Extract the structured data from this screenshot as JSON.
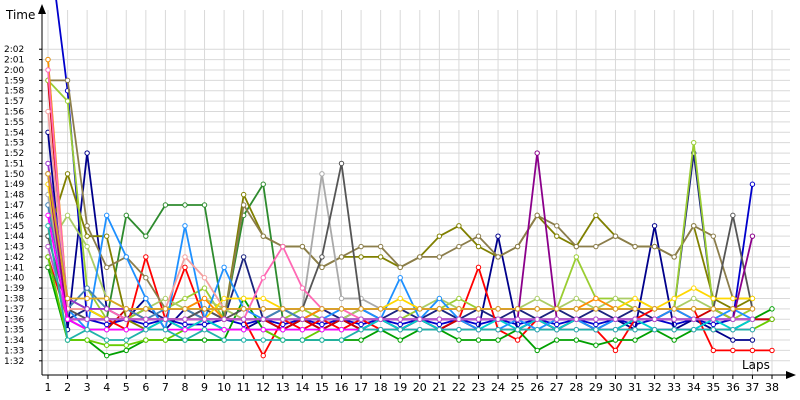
{
  "chart_data": {
    "type": "line",
    "xlabel": "Laps",
    "ylabel": "Time",
    "x_ticks": [
      "1",
      "2",
      "3",
      "4",
      "5",
      "6",
      "7",
      "8",
      "9",
      "10",
      "11",
      "12",
      "13",
      "14",
      "15",
      "16",
      "17",
      "18",
      "19",
      "20",
      "21",
      "22",
      "23",
      "24",
      "25",
      "26",
      "27",
      "28",
      "29",
      "30",
      "31",
      "32",
      "33",
      "34",
      "35",
      "36",
      "37",
      "38"
    ],
    "y_ticks": [
      "1:32",
      "1:33",
      "1:34",
      "1:35",
      "1:36",
      "1:37",
      "1:38",
      "1:39",
      "1:40",
      "1:41",
      "1:42",
      "1:43",
      "1:44",
      "1:45",
      "1:46",
      "1:47",
      "1:48",
      "1:49",
      "1:50",
      "1:51",
      "1:52",
      "1:53",
      "1:54",
      "1:55",
      "1:56",
      "1:57",
      "1:58",
      "1:59",
      "2:00",
      "2:01",
      "2:02"
    ],
    "xlim": [
      1,
      38
    ],
    "ylim_seconds": [
      91.5,
      122.5
    ],
    "grid": true,
    "legend": "none",
    "series": [
      {
        "color": "#0000cc",
        "values": [
          133,
          118,
          96,
          95.5,
          96,
          95.5,
          96,
          95.5,
          95.5,
          96,
          95.5,
          96,
          95.5,
          96,
          95.5,
          96,
          95.5,
          96,
          95.5,
          96,
          95.5,
          96,
          95.5,
          96,
          95.5,
          96,
          95.5,
          96,
          95.5,
          96,
          95.5,
          96,
          95.5,
          96,
          95.5,
          96,
          109
        ]
      },
      {
        "color": "#00008b",
        "values": [
          114,
          95,
          112,
          97,
          96,
          98,
          95,
          97,
          96,
          95,
          95,
          96,
          95,
          96,
          95,
          96,
          95,
          96,
          95,
          96,
          95,
          96,
          95,
          104,
          95,
          96,
          95,
          96,
          95,
          96,
          95,
          105,
          95,
          96,
          95,
          94,
          94
        ]
      },
      {
        "color": "#1a237e",
        "values": [
          110,
          96,
          97,
          96,
          96,
          97,
          96,
          96,
          97,
          96,
          102,
          96,
          97,
          96,
          97,
          96,
          97,
          96,
          97,
          96,
          97,
          96,
          97,
          96,
          97,
          96,
          97,
          96,
          97,
          96,
          97,
          96,
          97,
          112,
          97,
          96,
          96,
          96
        ]
      },
      {
        "color": "#ff0000",
        "values": [
          102,
          96,
          96,
          96,
          95,
          102,
          96,
          101,
          96,
          96,
          96,
          92.5,
          96,
          95,
          96,
          95,
          96,
          95,
          95,
          96,
          95,
          96,
          101,
          95,
          94,
          96,
          95,
          96,
          95,
          93,
          96,
          97,
          97,
          97,
          93,
          93,
          93,
          93
        ]
      },
      {
        "color": "#cc0000",
        "values": [
          119,
          96,
          95,
          95,
          97,
          96,
          96,
          95,
          96,
          96,
          96,
          96,
          95,
          96,
          95,
          96,
          95,
          96,
          95,
          96,
          95,
          96,
          95,
          95,
          95,
          96,
          95,
          96,
          95,
          95,
          96,
          96,
          97,
          96,
          97,
          96,
          96,
          96
        ]
      },
      {
        "color": "#00a000",
        "values": [
          101,
          94,
          94,
          92.5,
          93,
          94,
          94,
          94,
          94,
          94,
          98,
          95,
          94,
          94,
          94,
          94,
          94,
          95,
          94,
          95,
          95,
          94,
          94,
          94,
          95,
          93,
          94,
          94,
          93.5,
          94,
          94,
          95,
          94,
          95,
          95,
          95,
          96,
          97
        ]
      },
      {
        "color": "#2e8b2e",
        "values": [
          101,
          98,
          97,
          96,
          106,
          104,
          107,
          107,
          107,
          96,
          106,
          109,
          96,
          96,
          96,
          96,
          96,
          96,
          96,
          96,
          96,
          96,
          96,
          96,
          96,
          96,
          96,
          96,
          96,
          96,
          96,
          96,
          96,
          96,
          96,
          96,
          96
        ]
      },
      {
        "color": "#66cc00",
        "values": [
          102,
          94,
          94,
          93.5,
          93.5,
          94,
          94,
          95,
          95,
          95,
          95,
          95,
          94,
          94,
          95,
          95,
          95,
          95,
          95,
          95,
          95,
          95,
          95,
          95,
          95,
          95,
          95,
          95,
          95,
          95,
          95,
          95,
          95,
          95,
          95,
          95,
          95,
          96
        ]
      },
      {
        "color": "#808000",
        "values": [
          104,
          110,
          104,
          104,
          96,
          95,
          96,
          96,
          96,
          96,
          108,
          104,
          103,
          103,
          101,
          102,
          102,
          102,
          101,
          102,
          104,
          105,
          103,
          102,
          103,
          106,
          104,
          103,
          106,
          104,
          103,
          103,
          102,
          105,
          98,
          97,
          98
        ]
      },
      {
        "color": "#8b7d4b",
        "values": [
          119,
          119,
          105,
          101,
          102,
          100,
          97,
          97,
          96,
          96,
          107,
          104,
          103,
          103,
          101,
          102,
          103,
          103,
          101,
          102,
          102,
          103,
          104,
          102,
          103,
          106,
          105,
          103,
          103,
          104,
          103,
          103,
          102,
          105,
          104,
          98,
          98
        ]
      },
      {
        "color": "#9acd32",
        "values": [
          119,
          117,
          99,
          96,
          96,
          97,
          97,
          98,
          99,
          96,
          96,
          96,
          96,
          97,
          96,
          96,
          96,
          96,
          96,
          97,
          97,
          98,
          97,
          97,
          97,
          97,
          97,
          102,
          98,
          98,
          97,
          97,
          97,
          113,
          97,
          96,
          97
        ]
      },
      {
        "color": "#aacc66",
        "values": [
          103,
          106,
          103,
          98,
          97,
          97,
          98,
          97,
          98,
          97,
          96,
          96,
          97,
          96,
          96,
          96,
          97,
          97,
          97,
          97,
          98,
          97,
          97,
          97,
          97,
          98,
          97,
          98,
          97,
          98,
          98,
          97,
          97,
          98,
          97,
          97,
          97
        ]
      },
      {
        "color": "#00ced1",
        "values": [
          121,
          96,
          95,
          95,
          95,
          95,
          96,
          95,
          96,
          95,
          95,
          95,
          95,
          95,
          95,
          95,
          95,
          96,
          95,
          96,
          95,
          95,
          95,
          96,
          95,
          96,
          95,
          96,
          95,
          95,
          96,
          95,
          95,
          95,
          96,
          95,
          96
        ]
      },
      {
        "color": "#1e90ff",
        "values": [
          107,
          97,
          95,
          106,
          102,
          98,
          95,
          105,
          96,
          101,
          97,
          96,
          97,
          96,
          96,
          97,
          97,
          96,
          100,
          96,
          98,
          96,
          95,
          95,
          96,
          95,
          96,
          96,
          95,
          96,
          96,
          96,
          97,
          96,
          96,
          97,
          96
        ]
      },
      {
        "color": "#4682b4",
        "values": [
          107,
          97,
          99,
          97,
          97,
          96,
          97,
          97,
          96,
          96,
          96,
          96,
          97,
          96,
          96,
          96,
          96,
          96,
          96,
          96,
          96,
          96,
          96,
          96,
          96,
          96,
          96,
          96,
          96,
          96,
          96,
          96,
          96,
          96,
          96,
          96,
          96
        ]
      },
      {
        "color": "#a9a9a9",
        "values": [
          108,
          97,
          97,
          97,
          97,
          97,
          97,
          97,
          97,
          97,
          97,
          97,
          97,
          97,
          110,
          98,
          98,
          97,
          97,
          97,
          97,
          97,
          97,
          97,
          97,
          97,
          97,
          97,
          97,
          97,
          97,
          97,
          97,
          97,
          97,
          97,
          97
        ]
      },
      {
        "color": "#555555",
        "values": [
          104,
          97,
          96,
          96,
          96,
          96,
          96,
          96,
          97,
          96,
          97,
          97,
          97,
          97,
          102,
          111,
          97,
          97,
          97,
          97,
          97,
          97,
          97,
          97,
          97,
          97,
          97,
          97,
          97,
          97,
          97,
          97,
          97,
          97,
          97,
          106,
          97
        ]
      },
      {
        "color": "#ff8c00",
        "values": [
          121,
          97,
          97,
          97,
          97,
          97,
          97,
          97,
          98,
          96,
          96,
          96,
          96,
          96,
          97,
          97,
          97,
          97,
          97,
          97,
          97,
          97,
          97,
          97,
          97,
          97,
          97,
          97,
          98,
          97,
          97,
          97,
          97,
          97,
          97,
          97,
          97
        ]
      },
      {
        "color": "#ffd700",
        "values": [
          109,
          97,
          97,
          96,
          96,
          96,
          96,
          96,
          96,
          98,
          98,
          98,
          97,
          97,
          97,
          97,
          97,
          97,
          98,
          97,
          97,
          97,
          97,
          97,
          97,
          97,
          97,
          97,
          97,
          97,
          98,
          97,
          98,
          99,
          98,
          98,
          98
        ]
      },
      {
        "color": "#ff69b4",
        "values": [
          120,
          97,
          97,
          97,
          96,
          96,
          96,
          96,
          96,
          96,
          96,
          100,
          103,
          99,
          97,
          97,
          96,
          96,
          96,
          96,
          96,
          96,
          96,
          96,
          96,
          96,
          96,
          96,
          96,
          96,
          96,
          96,
          96,
          96,
          96,
          96,
          96
        ]
      },
      {
        "color": "#f4a0a0",
        "values": [
          116,
          97,
          97,
          97,
          97,
          97,
          97,
          102,
          100,
          97,
          97,
          97,
          97,
          97,
          97,
          97,
          97,
          97,
          97,
          97,
          97,
          97,
          97,
          97,
          97,
          97,
          97,
          97,
          97,
          97,
          97,
          97,
          97,
          97,
          97,
          97,
          97
        ]
      },
      {
        "color": "#8b008b",
        "values": [
          110,
          96,
          96,
          96,
          96,
          96,
          96,
          96,
          96,
          96,
          96,
          96,
          96,
          96,
          96,
          96,
          96,
          96,
          96,
          96,
          96,
          96,
          96,
          96,
          96,
          112,
          96,
          96,
          96,
          96,
          96,
          96,
          96,
          96,
          96,
          96,
          104
        ]
      },
      {
        "color": "#9932cc",
        "values": [
          111,
          98,
          97,
          97,
          97,
          97,
          97,
          97,
          97,
          97,
          97,
          97,
          97,
          97,
          97,
          97,
          97,
          97,
          97,
          97,
          97,
          97,
          97,
          97,
          97,
          97,
          97,
          97,
          97,
          97,
          97,
          97,
          97,
          97,
          97,
          97,
          97
        ]
      },
      {
        "color": "#ba55d3",
        "values": [
          103,
          96,
          96,
          96,
          96,
          96,
          96,
          96,
          96,
          96,
          96,
          96,
          96,
          96,
          96,
          96,
          96,
          96,
          96,
          96,
          96,
          96,
          96,
          96,
          96,
          96,
          96,
          96,
          96,
          96,
          96,
          96,
          96,
          96,
          96,
          96,
          96
        ]
      },
      {
        "color": "#ff00ff",
        "values": [
          106,
          96,
          95,
          95,
          95,
          95,
          95,
          95,
          95,
          95,
          95,
          95,
          95,
          95,
          95,
          95,
          95,
          95,
          95,
          95,
          95,
          95,
          95,
          95,
          95,
          95,
          95,
          95,
          95,
          95,
          95,
          95,
          95,
          95,
          95,
          95,
          95
        ]
      },
      {
        "color": "#daa520",
        "values": [
          110,
          98,
          98,
          98,
          97,
          97,
          97,
          97,
          97,
          97,
          97,
          97,
          97,
          97,
          97,
          97,
          97,
          97,
          97,
          97,
          97,
          97,
          97,
          97,
          97,
          97,
          97,
          97,
          97,
          97,
          97,
          97,
          97,
          97,
          97,
          97,
          97
        ]
      },
      {
        "color": "#20b2aa",
        "values": [
          105,
          94,
          95,
          94,
          94,
          95,
          95,
          94,
          95,
          94,
          94,
          94,
          94,
          94,
          94,
          94,
          95,
          95,
          95,
          95,
          95,
          95,
          95,
          95,
          95,
          95,
          95,
          95,
          95,
          95,
          95,
          95,
          95,
          95,
          95,
          95,
          95
        ]
      }
    ]
  }
}
